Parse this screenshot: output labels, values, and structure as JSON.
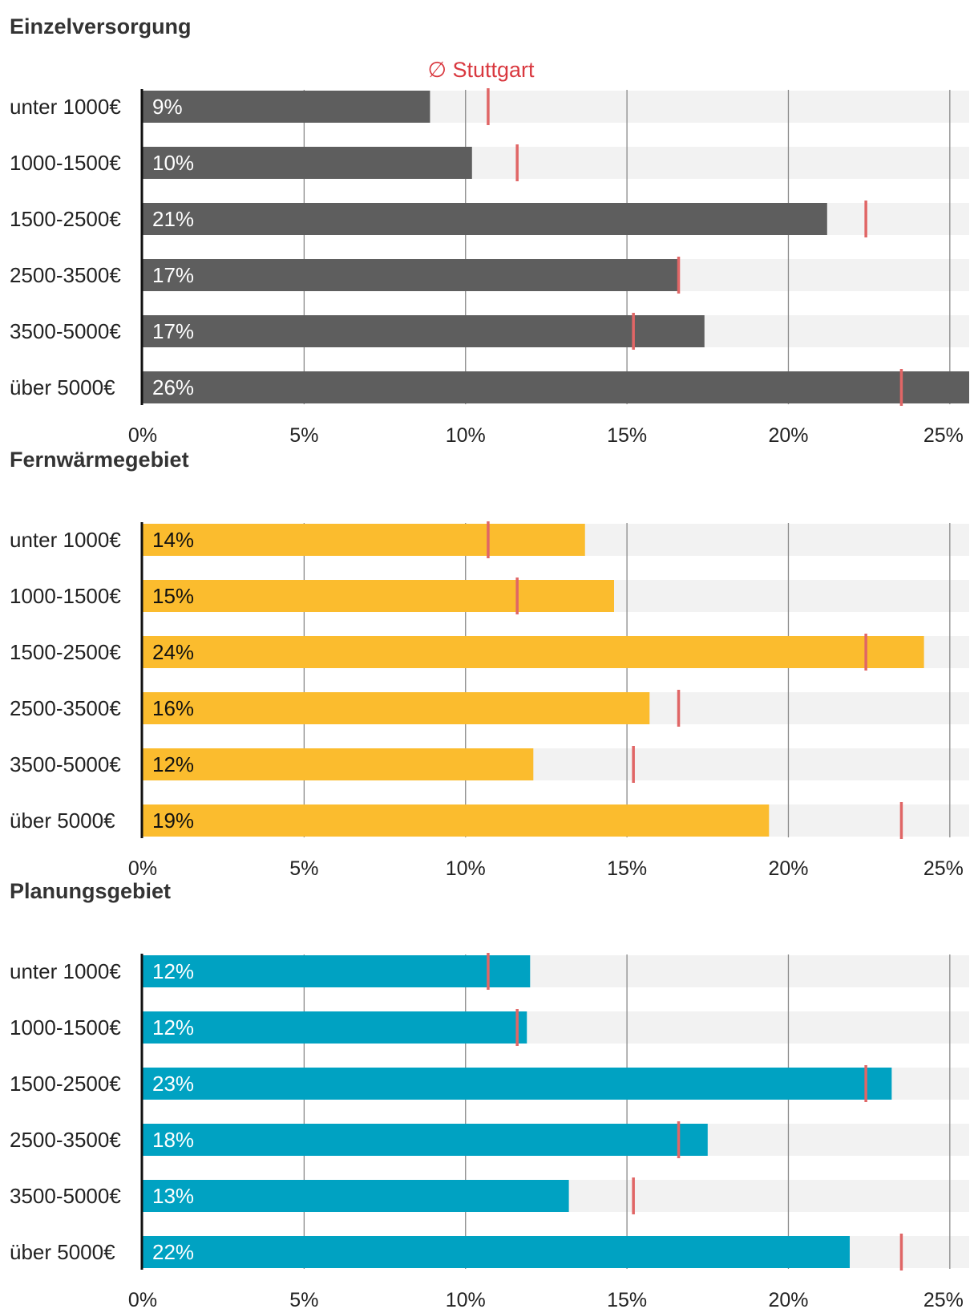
{
  "legend": {
    "label": "∅ Stuttgart",
    "color": "#d9383f"
  },
  "colors": {
    "track": "#f2f2f2",
    "grid": "#8a8a8a",
    "axis": "#111111",
    "label_text": "#222222",
    "marker": "#e06666"
  },
  "chart_data": [
    {
      "type": "bar",
      "title": "Einzelversorgung",
      "bar_color": "#5e5e5e",
      "value_label_color": "#ffffff",
      "categories": [
        "unter 1000€",
        "1000-1500€",
        "1500-2500€",
        "2500-3500€",
        "3500-5000€",
        "über 5000€"
      ],
      "values": [
        8.9,
        10.2,
        21.2,
        16.6,
        17.4,
        25.6
      ],
      "value_labels": [
        "9%",
        "10%",
        "21%",
        "17%",
        "17%",
        "26%"
      ],
      "stuttgart_avg": [
        10.7,
        11.6,
        22.4,
        16.6,
        15.2,
        23.5
      ],
      "xlim": [
        0,
        25.6
      ],
      "xticks": [
        0,
        5,
        10,
        15,
        20,
        25
      ],
      "xtick_labels": [
        "0%",
        "5%",
        "10%",
        "15%",
        "20%",
        "25%"
      ]
    },
    {
      "type": "bar",
      "title": "Fernwärmegebiet",
      "bar_color": "#fbbc2e",
      "value_label_color": "#111111",
      "categories": [
        "unter 1000€",
        "1000-1500€",
        "1500-2500€",
        "2500-3500€",
        "3500-5000€",
        "über 5000€"
      ],
      "values": [
        13.7,
        14.6,
        24.2,
        15.7,
        12.1,
        19.4
      ],
      "value_labels": [
        "14%",
        "15%",
        "24%",
        "16%",
        "12%",
        "19%"
      ],
      "stuttgart_avg": [
        10.7,
        11.6,
        22.4,
        16.6,
        15.2,
        23.5
      ],
      "xlim": [
        0,
        25.6
      ],
      "xticks": [
        0,
        5,
        10,
        15,
        20,
        25
      ],
      "xtick_labels": [
        "0%",
        "5%",
        "10%",
        "15%",
        "20%",
        "25%"
      ]
    },
    {
      "type": "bar",
      "title": "Planungsgebiet",
      "bar_color": "#00a2c2",
      "value_label_color": "#ffffff",
      "categories": [
        "unter 1000€",
        "1000-1500€",
        "1500-2500€",
        "2500-3500€",
        "3500-5000€",
        "über 5000€"
      ],
      "values": [
        12.0,
        11.9,
        23.2,
        17.5,
        13.2,
        21.9
      ],
      "value_labels": [
        "12%",
        "12%",
        "23%",
        "18%",
        "13%",
        "22%"
      ],
      "stuttgart_avg": [
        10.7,
        11.6,
        22.4,
        16.6,
        15.2,
        23.5
      ],
      "xlim": [
        0,
        25.6
      ],
      "xticks": [
        0,
        5,
        10,
        15,
        20,
        25
      ],
      "xtick_labels": [
        "0%",
        "5%",
        "10%",
        "15%",
        "20%",
        "25%"
      ]
    }
  ]
}
